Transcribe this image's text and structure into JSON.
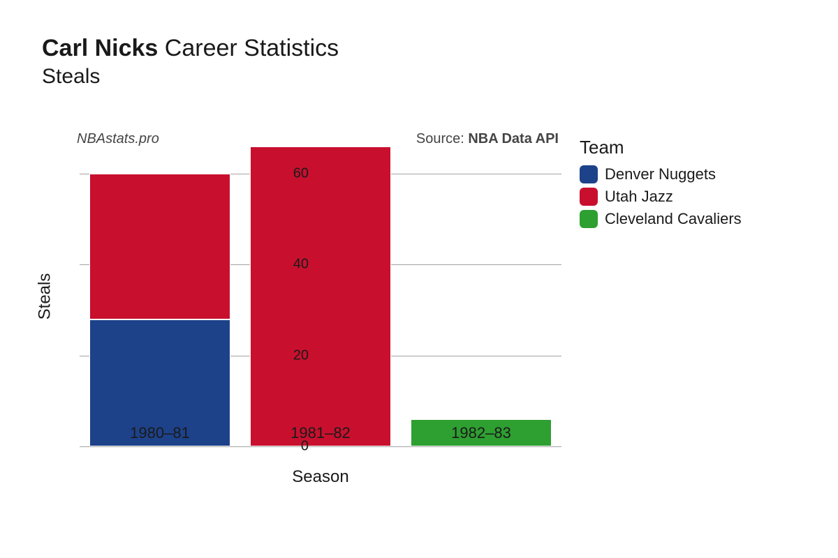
{
  "title": {
    "bold": "Carl Nicks",
    "rest": "Career Statistics"
  },
  "subtitle": "Steals",
  "meta": {
    "left": "NBAstats.pro",
    "right_prefix": "Source: ",
    "right_bold": "NBA Data API"
  },
  "chart": {
    "type": "stacked-bar",
    "xlabel": "Season",
    "ylabel": "Steals",
    "ylim": [
      0,
      66
    ],
    "ytick_step": 20,
    "yticks": [
      0,
      20,
      40,
      60
    ],
    "grid_color": "#666666",
    "background_color": "#ffffff",
    "bar_width": 0.88,
    "categories": [
      "1980–81",
      "1981–82",
      "1982–83"
    ],
    "stacks": [
      [
        {
          "team": "Denver Nuggets",
          "value": 28
        },
        {
          "team": "Utah Jazz",
          "value": 32
        }
      ],
      [
        {
          "team": "Utah Jazz",
          "value": 66
        }
      ],
      [
        {
          "team": "Cleveland Cavaliers",
          "value": 6
        }
      ]
    ],
    "title_fontsize": 34,
    "subtitle_fontsize": 30,
    "tick_fontsize": 20,
    "axis_label_fontsize": 24,
    "legend_title_fontsize": 26,
    "legend_label_fontsize": 22
  },
  "legend": {
    "title": "Team",
    "items": [
      {
        "label": "Denver Nuggets",
        "color": "#1d428a"
      },
      {
        "label": "Utah Jazz",
        "color": "#c8102e"
      },
      {
        "label": "Cleveland Cavaliers",
        "color": "#2e9f31"
      }
    ]
  }
}
